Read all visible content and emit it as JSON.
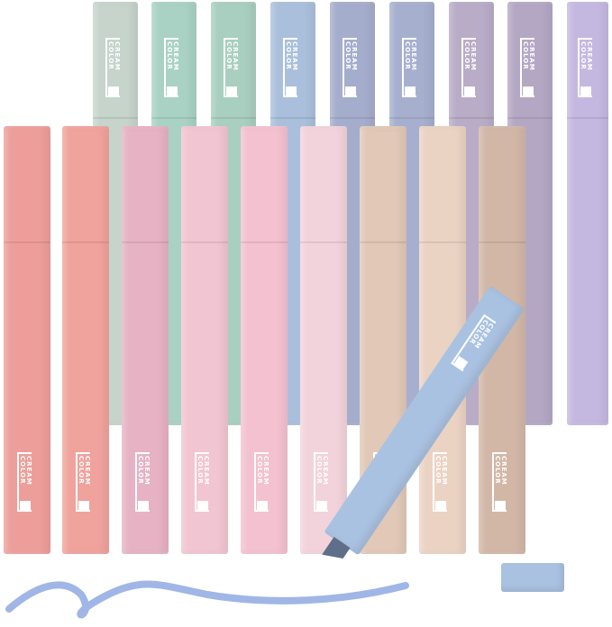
{
  "image": {
    "subject": "pastel highlighter marker set",
    "brand_logo_text": "CREAM\nCOLOR",
    "back_row_colors": [
      "#c6d4cc",
      "#a9d2c4",
      "#a8cfbf",
      "#aabfdc",
      "#a4adcc",
      "#a6afce",
      "#b9acc7",
      "#b4a7c4",
      "#c5b8e0"
    ],
    "front_row_colors": [
      "#ee9e9a",
      "#f0a29c",
      "#e6b2c4",
      "#f1c5d1",
      "#f3c1d0",
      "#f3d3db",
      "#e1c8b7",
      "#ebd3c4",
      "#d2b7a7"
    ],
    "open_marker_color": "#aac2e1",
    "ink_color": "#9fb6e6"
  }
}
